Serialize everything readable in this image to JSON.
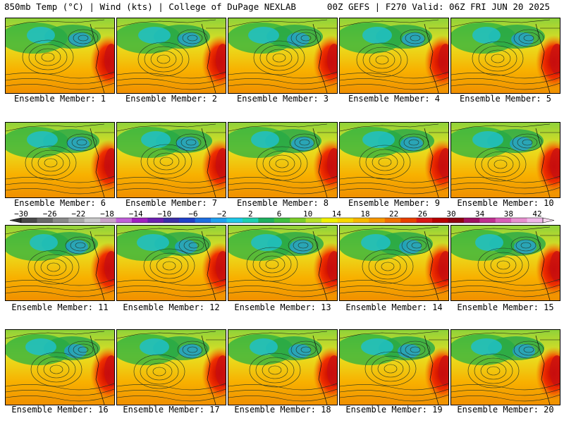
{
  "header": {
    "left": "850mb Temp (°C) | Wind (kts) | College of DuPage NEXLAB",
    "right": "00Z GEFS | F270 Valid: 06Z FRI JUN 20 2025"
  },
  "members": [
    "Ensemble Member: 1",
    "Ensemble Member: 2",
    "Ensemble Member: 3",
    "Ensemble Member: 4",
    "Ensemble Member: 5",
    "Ensemble Member: 6",
    "Ensemble Member: 7",
    "Ensemble Member: 8",
    "Ensemble Member: 9",
    "Ensemble Member: 10",
    "Ensemble Member: 11",
    "Ensemble Member: 12",
    "Ensemble Member: 13",
    "Ensemble Member: 14",
    "Ensemble Member: 15",
    "Ensemble Member: 16",
    "Ensemble Member: 17",
    "Ensemble Member: 18",
    "Ensemble Member: 19",
    "Ensemble Member: 20"
  ],
  "colorbar": {
    "ticks": [
      "-30",
      "-26",
      "-22",
      "-18",
      "-14",
      "-10",
      "-6",
      "-2",
      "2",
      "6",
      "10",
      "14",
      "18",
      "22",
      "26",
      "30",
      "34",
      "38",
      "42"
    ],
    "colors": [
      "#4a4a4a",
      "#6a6a6a",
      "#8a8a8a",
      "#aaaaaa",
      "#c9c9c9",
      "#c8a2c8",
      "#c060d8",
      "#a020c0",
      "#6a1fb0",
      "#3a2ea8",
      "#2040c8",
      "#1e6ee0",
      "#1fa0f0",
      "#20c8e8",
      "#1fd0b0",
      "#20b060",
      "#40c040",
      "#7ccd2a",
      "#b8e02a",
      "#f0f000",
      "#f8d800",
      "#f8b800",
      "#f89800",
      "#f07000",
      "#e84000",
      "#d81818",
      "#b80000",
      "#900010",
      "#a01060",
      "#c03090",
      "#d860b8",
      "#e890d0",
      "#f0b8e8"
    ]
  }
}
